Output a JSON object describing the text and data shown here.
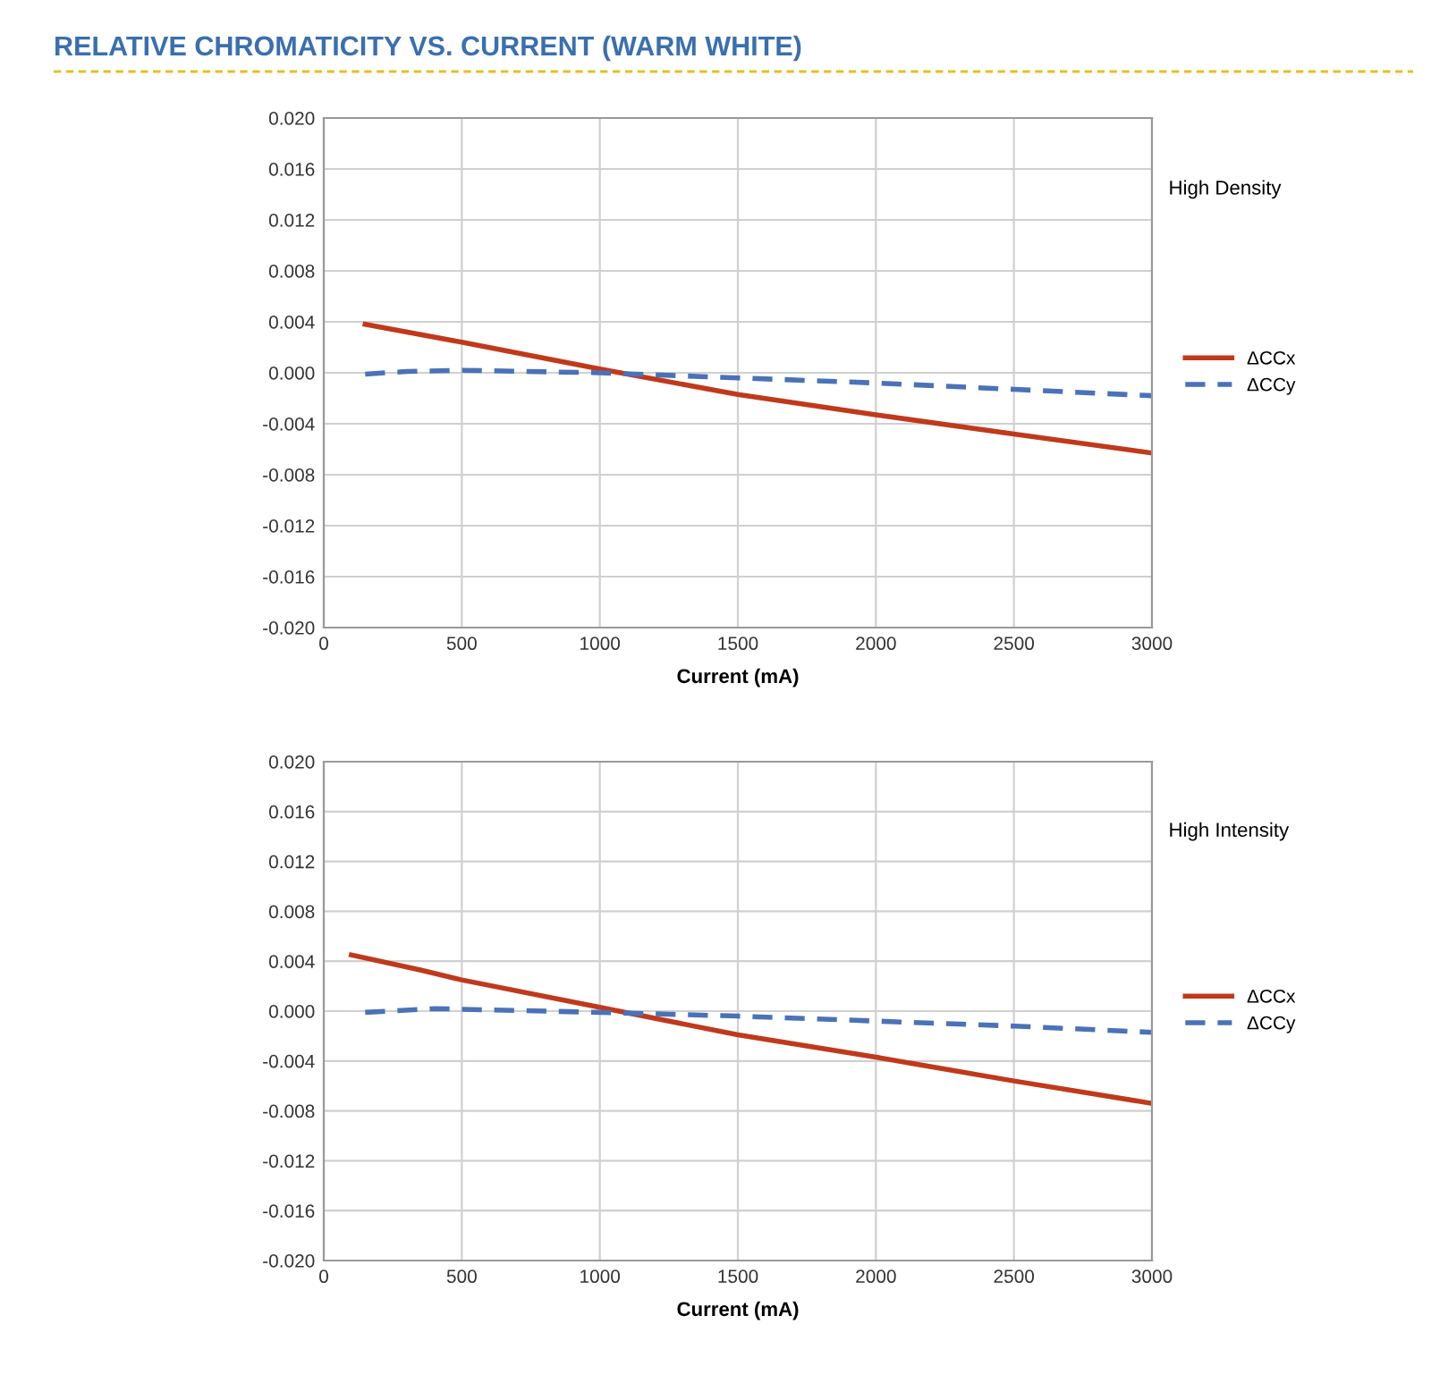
{
  "chart_data": [
    {
      "type": "line",
      "title": "RELATIVE CHROMATICITY VS. CURRENT (WARM WHITE)",
      "xlabel": "Current (mA)",
      "annotations": [
        "High Density"
      ],
      "xlim": [
        0,
        3000
      ],
      "xticks": [
        0,
        500,
        1000,
        1500,
        2000,
        2500,
        3000
      ],
      "ylim": [
        -0.02,
        0.02
      ],
      "yticks": [
        {
          "value": -0.02,
          "label": "-0.020"
        },
        {
          "value": -0.016,
          "label": "-0.016"
        },
        {
          "value": -0.012,
          "label": "-0.012"
        },
        {
          "value": -0.008,
          "label": "-0.008"
        },
        {
          "value": -0.004,
          "label": "-0.004"
        },
        {
          "value": 0,
          "label": "0.000"
        },
        {
          "value": 0.004,
          "label": "0.004"
        },
        {
          "value": 0.008,
          "label": "0.008"
        },
        {
          "value": 0.012,
          "label": "0.012"
        },
        {
          "value": 0.016,
          "label": "0.016"
        },
        {
          "value": 0.02,
          "label": "0.020"
        }
      ],
      "grid": true,
      "legend": "right",
      "marker": "none",
      "series": [
        {
          "name": "ΔCCx",
          "color": "#c0391b",
          "line_style": "solid",
          "x": [
            150,
            500,
            1000,
            1500,
            2000,
            2500,
            3000
          ],
          "values": [
            0.0038,
            0.0024,
            0.0003,
            -0.0017,
            -0.0033,
            -0.0048,
            -0.0063
          ]
        },
        {
          "name": "ΔCCy",
          "color": "#4a72b8",
          "line_style": "dashed",
          "x": [
            150,
            300,
            500,
            1000,
            1500,
            2000,
            2500,
            3000
          ],
          "values": [
            -0.0001,
            0.0001,
            0.0002,
            0.0,
            -0.0004,
            -0.0008,
            -0.0013,
            -0.0018
          ]
        }
      ]
    },
    {
      "type": "line",
      "xlabel": "Current (mA)",
      "annotations": [
        "High Intensity"
      ],
      "xlim": [
        0,
        3000
      ],
      "xticks": [
        0,
        500,
        1000,
        1500,
        2000,
        2500,
        3000
      ],
      "ylim": [
        -0.02,
        0.02
      ],
      "yticks": [
        {
          "value": -0.02,
          "label": "-0.020"
        },
        {
          "value": -0.016,
          "label": "-0.016"
        },
        {
          "value": -0.012,
          "label": "-0.012"
        },
        {
          "value": -0.008,
          "label": "-0.008"
        },
        {
          "value": -0.004,
          "label": "-0.004"
        },
        {
          "value": 0,
          "label": "0.000"
        },
        {
          "value": 0.004,
          "label": "0.004"
        },
        {
          "value": 0.008,
          "label": "0.008"
        },
        {
          "value": 0.012,
          "label": "0.012"
        },
        {
          "value": 0.016,
          "label": "0.016"
        },
        {
          "value": 0.02,
          "label": "0.020"
        }
      ],
      "grid": true,
      "legend": "right",
      "marker": "none",
      "series": [
        {
          "name": "ΔCCx",
          "color": "#c0391b",
          "line_style": "solid",
          "x": [
            100,
            350,
            500,
            1000,
            1500,
            2000,
            2500,
            3000
          ],
          "values": [
            0.0045,
            0.0033,
            0.0025,
            0.0003,
            -0.0019,
            -0.0037,
            -0.0056,
            -0.0074
          ]
        },
        {
          "name": "ΔCCy",
          "color": "#4a72b8",
          "line_style": "dashed",
          "x": [
            150,
            400,
            1000,
            1500,
            2000,
            2500,
            3000
          ],
          "values": [
            -0.0001,
            0.0002,
            -0.0001,
            -0.0004,
            -0.0008,
            -0.0012,
            -0.0017
          ]
        }
      ]
    }
  ]
}
